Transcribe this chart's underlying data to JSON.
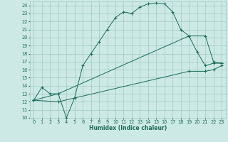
{
  "xlabel": "Humidex (Indice chaleur)",
  "xlim": [
    -0.5,
    23.5
  ],
  "ylim": [
    10,
    24.5
  ],
  "yticks": [
    10,
    11,
    12,
    13,
    14,
    15,
    16,
    17,
    18,
    19,
    20,
    21,
    22,
    23,
    24
  ],
  "xticks": [
    0,
    1,
    2,
    3,
    4,
    5,
    6,
    7,
    8,
    9,
    10,
    11,
    12,
    13,
    14,
    15,
    16,
    17,
    18,
    19,
    20,
    21,
    22,
    23
  ],
  "bg_color": "#cce9e5",
  "grid_color": "#a0c8c4",
  "line_color": "#1a6b5a",
  "line1_x": [
    0,
    1,
    2,
    3,
    4,
    5,
    6,
    7,
    8,
    9,
    10,
    11,
    12,
    13,
    14,
    15,
    16,
    17,
    18,
    19,
    20,
    21,
    22,
    23
  ],
  "line1_y": [
    12.2,
    13.8,
    13.0,
    13.0,
    10.0,
    12.5,
    16.5,
    18.0,
    19.5,
    21.0,
    22.5,
    23.2,
    23.0,
    23.8,
    24.2,
    24.3,
    24.2,
    23.2,
    21.0,
    20.2,
    18.2,
    16.5,
    16.8,
    16.8
  ],
  "line2_x": [
    0,
    3,
    19,
    21,
    22,
    23
  ],
  "line2_y": [
    12.2,
    13.0,
    20.2,
    20.2,
    17.0,
    16.8
  ],
  "line3_x": [
    0,
    3,
    19,
    21,
    22,
    23
  ],
  "line3_y": [
    12.2,
    12.0,
    15.8,
    15.8,
    16.0,
    16.5
  ]
}
